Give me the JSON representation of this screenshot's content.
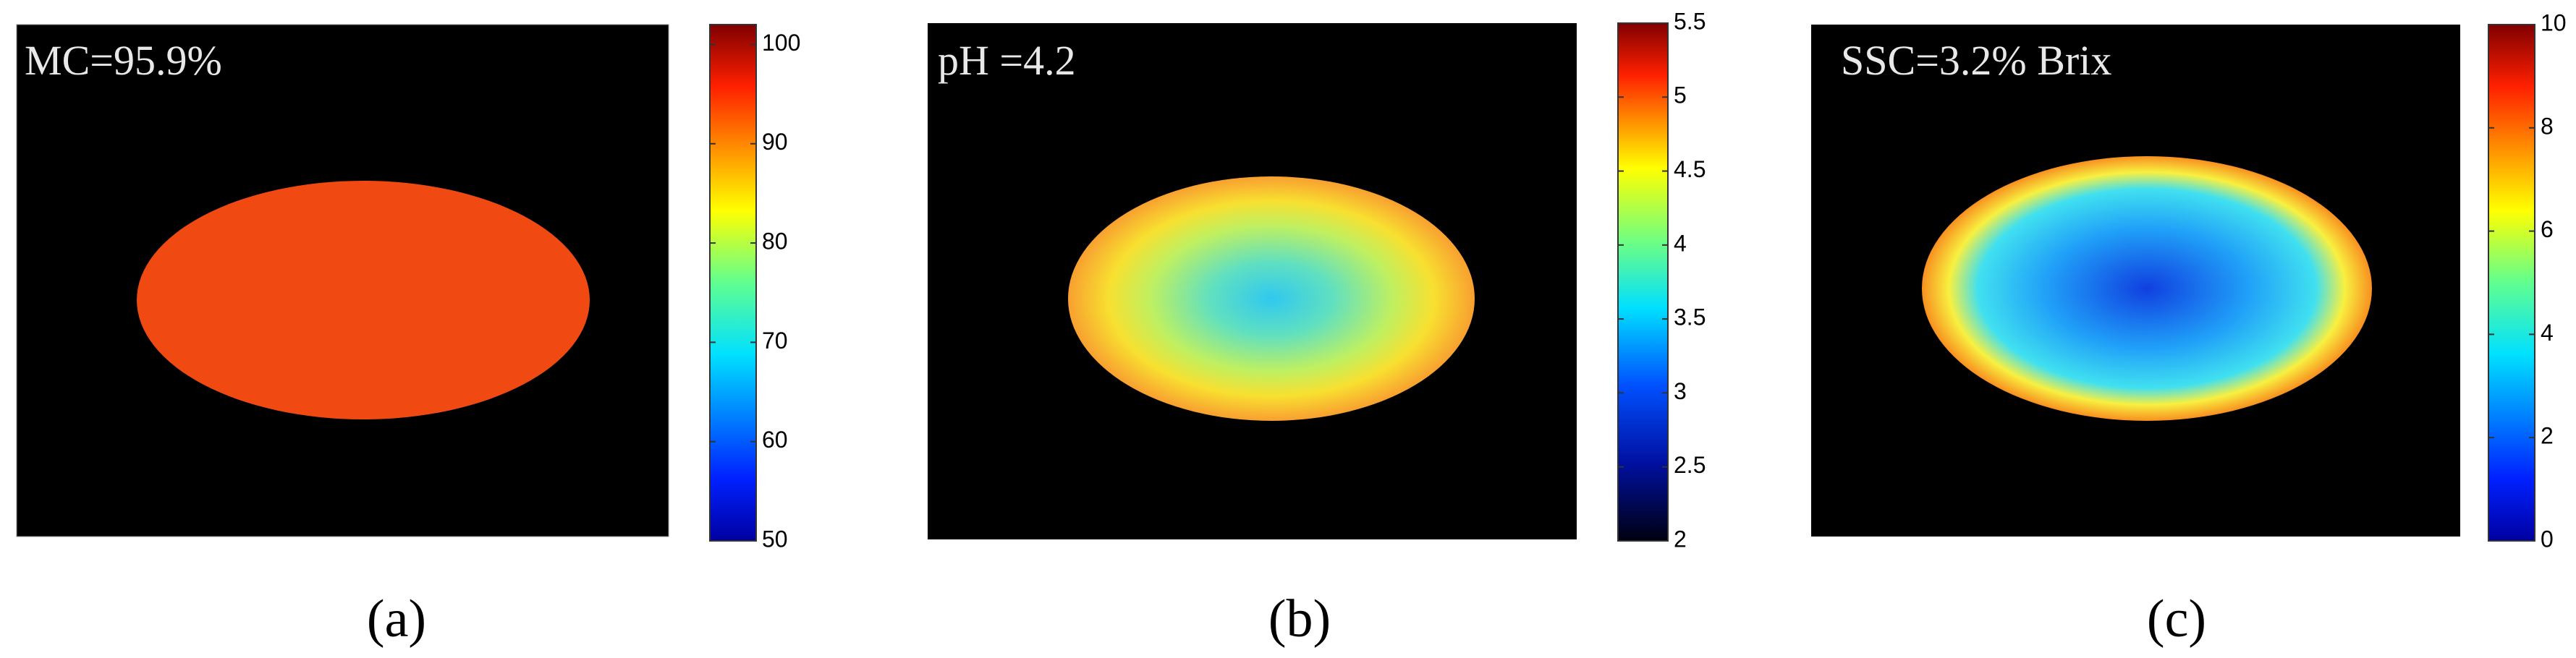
{
  "panels": [
    {
      "annotation": "MC=95.9%",
      "caption": "(a)",
      "colorbar": {
        "lim": [
          50,
          102
        ],
        "ticks": [
          50,
          60,
          70,
          80,
          90,
          100
        ]
      }
    },
    {
      "annotation": "pH =4.2",
      "caption": "(b)",
      "colorbar": {
        "lim": [
          2,
          5.5
        ],
        "ticks": [
          2,
          2.5,
          3,
          3.5,
          4,
          4.5,
          5,
          5.5
        ]
      }
    },
    {
      "annotation": "SSC=3.2% Brix",
      "caption": "(c)",
      "colorbar": {
        "lim": [
          0,
          10
        ],
        "ticks": [
          0,
          2,
          4,
          6,
          8,
          10
        ]
      }
    }
  ]
}
